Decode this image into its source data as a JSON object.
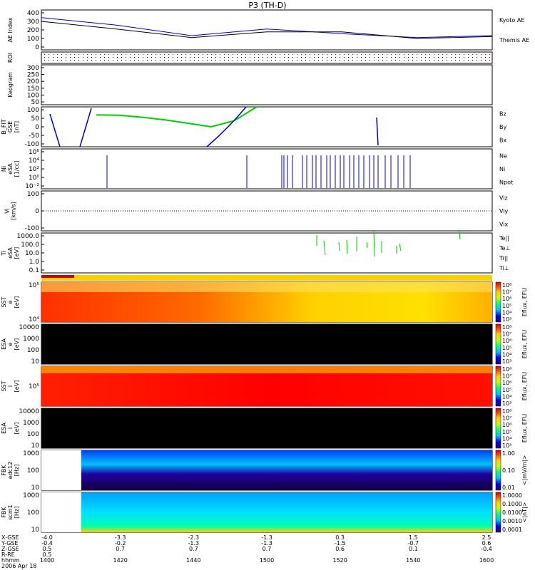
{
  "title": "P3 (TH-D)",
  "colors": {
    "kyoto": "#0000cc",
    "themis": "#000000",
    "red": "#dd0000",
    "green": "#00cc00",
    "blue": "#0000cc",
    "black": "#000000",
    "orange_bar": "#ffd000",
    "mode_red": "#cc0000"
  },
  "panels": [
    {
      "id": "ae",
      "ylabel_lines": [
        "AE Index"
      ],
      "ticks": [
        "400",
        "300",
        "200",
        "100",
        "0"
      ],
      "legend": [
        {
          "text": "Kyoto AE",
          "color": "#0000cc"
        },
        {
          "text": "Themis AE",
          "color": "#000000"
        }
      ]
    },
    {
      "id": "roi",
      "ylabel_lines": [
        "ROI"
      ],
      "ticks": [],
      "legend": []
    },
    {
      "id": "keogram",
      "ylabel_lines": [
        "Keogram"
      ],
      "ticks": [
        "300",
        "250",
        "200",
        "150",
        "100",
        "50"
      ],
      "legend": []
    },
    {
      "id": "bfit",
      "ylabel_lines": [
        "B_FIT",
        "GSE",
        "[nT]"
      ],
      "ticks": [
        "100",
        "50",
        "0",
        "-50",
        "-100"
      ],
      "legend": [
        {
          "text": "Bz",
          "color": "#dd0000"
        },
        {
          "text": "By",
          "color": "#00cc00"
        },
        {
          "text": "Bx",
          "color": "#0000cc"
        }
      ]
    },
    {
      "id": "ni",
      "ylabel_lines": [
        "Ni",
        "eSA",
        "[1/cc]"
      ],
      "ticks": [
        "10⁶",
        "10⁴",
        "10²",
        "10⁰",
        "10⁻²"
      ],
      "legend": [
        {
          "text": "Ne",
          "color": "#dd0000"
        },
        {
          "text": "Ni",
          "color": "#000000"
        },
        {
          "text": "Npot",
          "color": "#0000cc"
        }
      ]
    },
    {
      "id": "vi",
      "ylabel_lines": [
        "Vi",
        "[km/s]"
      ],
      "ticks": [
        "100",
        "0",
        "-100"
      ],
      "legend": [
        {
          "text": "Viz",
          "color": "#dd0000"
        },
        {
          "text": "Viy",
          "color": "#00cc00"
        },
        {
          "text": "Vix",
          "color": "#0000cc"
        }
      ]
    },
    {
      "id": "ti",
      "ylabel_lines": [
        "Ti",
        "eSA",
        "[eV]"
      ],
      "ticks": [
        "1000.0",
        "100.0",
        "10.0",
        "1.0",
        "0.1"
      ],
      "legend": [
        {
          "text": "Te||",
          "color": "#000000"
        },
        {
          "text": "Te⊥",
          "color": "#dd0000"
        },
        {
          "text": "Ti||",
          "color": "#00cc00"
        },
        {
          "text": "Ti⊥",
          "color": "#0000cc"
        }
      ]
    },
    {
      "id": "sst_e",
      "ylabel_lines": [
        "SST",
        "e",
        "[eV]"
      ],
      "ticks": [
        "10⁵",
        "10⁴"
      ],
      "legend": []
    },
    {
      "id": "esa_e",
      "ylabel_lines": [
        "ESA",
        "e",
        "[eV]"
      ],
      "ticks": [
        "10000",
        "1000",
        "100",
        "10"
      ],
      "legend": []
    },
    {
      "id": "sst_i",
      "ylabel_lines": [
        "SST",
        "i",
        "[eV]"
      ],
      "ticks": [
        "10⁵"
      ],
      "legend": []
    },
    {
      "id": "esa_i",
      "ylabel_lines": [
        "ESA",
        "i",
        "[eV]"
      ],
      "ticks": [
        "10000",
        "1000",
        "100",
        "10"
      ],
      "legend": []
    },
    {
      "id": "fbk1",
      "ylabel_lines": [
        "FBK",
        "edc12",
        "[Hz]"
      ],
      "ticks": [
        "1000",
        "100",
        "10"
      ],
      "legend": []
    },
    {
      "id": "fbk2",
      "ylabel_lines": [
        "FBK",
        "scm1",
        "[Hz]"
      ],
      "ticks": [
        "1000",
        "100",
        "10"
      ],
      "legend": []
    }
  ],
  "colorbars": [
    {
      "label": "Eflux, EFU",
      "ticks": [
        "10⁸",
        "10⁷",
        "10⁶",
        "10⁵",
        "10⁴",
        "10³"
      ]
    },
    {
      "label": "Eflux, EFU",
      "ticks": [
        "10⁸",
        "10⁷",
        "10⁶",
        "10⁵",
        "10⁴",
        "10³"
      ]
    },
    {
      "label": "Eflux, EFU",
      "ticks": [
        "10⁸",
        "10⁷",
        "10⁶",
        "10⁵",
        "10⁴",
        "10³"
      ]
    },
    {
      "label": "Eflux, EFU",
      "ticks": [
        "10⁸",
        "10⁷",
        "10⁶",
        "10⁵",
        "10⁴",
        "10³"
      ]
    },
    {
      "label": "<|mV/m|>",
      "ticks": [
        "1.00",
        "0.10",
        "0.01"
      ]
    },
    {
      "label": "<|nT|>",
      "ticks": [
        "1.0000",
        "0.1000",
        "0.0100",
        "0.0010",
        "0.0001"
      ]
    }
  ],
  "x_axis": {
    "row_labels": [
      "X-GSE",
      "Y-GSE",
      "Z-GSE",
      "R-RE",
      "hhmm",
      "2006 Apr 18"
    ],
    "columns": [
      [
        "-4.0",
        "-0.4",
        "0.5",
        "0.5",
        "1400"
      ],
      [
        "-3.3",
        "-0.2",
        "0.7",
        "",
        "1420"
      ],
      [
        "-2.3",
        "-1.3",
        "0.7",
        "",
        "1440"
      ],
      [
        "-1.3",
        "-1.3",
        "0.7",
        "",
        "1500"
      ],
      [
        "0.3",
        "-1.5",
        "0.6",
        "",
        "1520"
      ],
      [
        "1.5",
        "-0.7",
        "0.1",
        "",
        "1540"
      ],
      [
        "2.5",
        "0.6",
        "-0.4",
        "",
        "1600"
      ]
    ]
  },
  "chart_data": [
    {
      "type": "line",
      "panel": "AE Index",
      "ylim": [
        0,
        420
      ],
      "x": [
        "1400",
        "1420",
        "1440",
        "1500",
        "1520",
        "1540",
        "1600"
      ],
      "series": [
        {
          "name": "Kyoto AE",
          "values": [
            340,
            260,
            150,
            220,
            170,
            130,
            150
          ]
        },
        {
          "name": "Themis AE",
          "values": [
            300,
            220,
            130,
            190,
            190,
            120,
            140
          ]
        }
      ]
    },
    {
      "type": "line",
      "panel": "B_FIT GSE [nT]",
      "ylim": [
        -100,
        100
      ],
      "series": [
        {
          "name": "By",
          "values": [
            60,
            58,
            48,
            35,
            18,
            0,
            30,
            100
          ]
        }
      ]
    },
    {
      "type": "heatmap",
      "panel": "SST e",
      "note": "energy-time spectrogram"
    },
    {
      "type": "heatmap",
      "panel": "SST i",
      "note": "energy-time spectrogram"
    }
  ]
}
